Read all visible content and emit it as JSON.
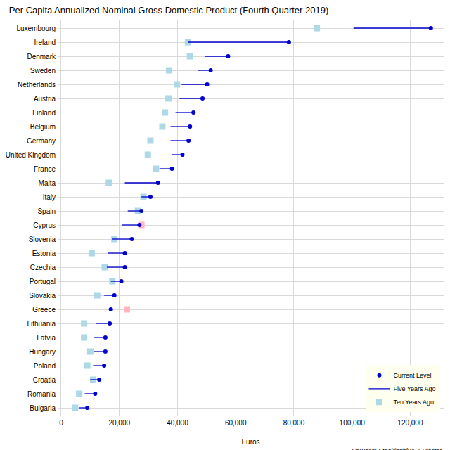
{
  "chart_data": {
    "type": "dumbbell",
    "title": "Per Capita Annualized Nominal Gross Domestic Product (Fourth Quarter 2019)",
    "orientation": "horizontal",
    "x_label": "Euros",
    "annotation": "Sources: Stockingblue, Eurostat",
    "categories": [
      "Luxembourg",
      "Ireland",
      "Denmark",
      "Sweden",
      "Netherlands",
      "Austria",
      "Finland",
      "Belgium",
      "Germany",
      "United Kingdom",
      "France",
      "Malta",
      "Italy",
      "Spain",
      "Cyprus",
      "Slovenia",
      "Estonia",
      "Czechia",
      "Portugal",
      "Slovakia",
      "Greece",
      "Lithuania",
      "Latvia",
      "Hungary",
      "Poland",
      "Croatia",
      "Romania",
      "Bulgaria"
    ],
    "series": [
      {
        "name": "Current Level",
        "type": "point",
        "marker": "circle",
        "color": "#0000cd",
        "values": [
          127100,
          78300,
          57400,
          51400,
          50200,
          48600,
          45500,
          44300,
          43800,
          41700,
          38100,
          33300,
          30700,
          27600,
          26900,
          24300,
          21900,
          21900,
          20700,
          18300,
          17100,
          16700,
          15200,
          15200,
          14800,
          13100,
          11700,
          9000
        ]
      },
      {
        "name": "Five Years Ago",
        "type": "segment",
        "marker": "line",
        "color": "#0000cd",
        "values": [
          100500,
          43600,
          49500,
          47100,
          41400,
          40700,
          39300,
          37600,
          37600,
          38100,
          33800,
          21900,
          27600,
          22900,
          21000,
          17600,
          16000,
          15700,
          17100,
          14800,
          16400,
          12100,
          11400,
          11200,
          11000,
          10000,
          8100,
          6200
        ]
      },
      {
        "name": "Ten Years Ago",
        "type": "point",
        "marker": "square",
        "color": "#add8e6",
        "values": [
          87900,
          43600,
          44300,
          37100,
          39800,
          36900,
          35700,
          34800,
          30700,
          29800,
          32600,
          16400,
          28300,
          26400,
          27600,
          18300,
          10500,
          15000,
          17600,
          12400,
          22600,
          7900,
          7900,
          10000,
          9000,
          11000,
          6200,
          4800
        ],
        "colors": [
          "#add8e6",
          "#add8e6",
          "#add8e6",
          "#add8e6",
          "#add8e6",
          "#add8e6",
          "#add8e6",
          "#add8e6",
          "#add8e6",
          "#add8e6",
          "#add8e6",
          "#add8e6",
          "#add8e6",
          "#add8e6",
          "#ffb6c1",
          "#add8e6",
          "#add8e6",
          "#add8e6",
          "#add8e6",
          "#add8e6",
          "#ffb6c1",
          "#add8e6",
          "#add8e6",
          "#add8e6",
          "#add8e6",
          "#add8e6",
          "#add8e6",
          "#add8e6"
        ]
      }
    ],
    "xlim": [
      -1200,
      131500
    ],
    "xticks": [
      0,
      {
        "value": 20000,
        "label": "20,000"
      },
      {
        "value": 40000,
        "label": "40,000"
      },
      {
        "value": 60000,
        "label": "60,000"
      },
      {
        "value": 80000,
        "label": "80,000"
      },
      {
        "value": 100000,
        "label": "100,000"
      },
      {
        "value": 120000,
        "label": "120,000"
      }
    ],
    "grid": true,
    "legend": "lower right"
  }
}
